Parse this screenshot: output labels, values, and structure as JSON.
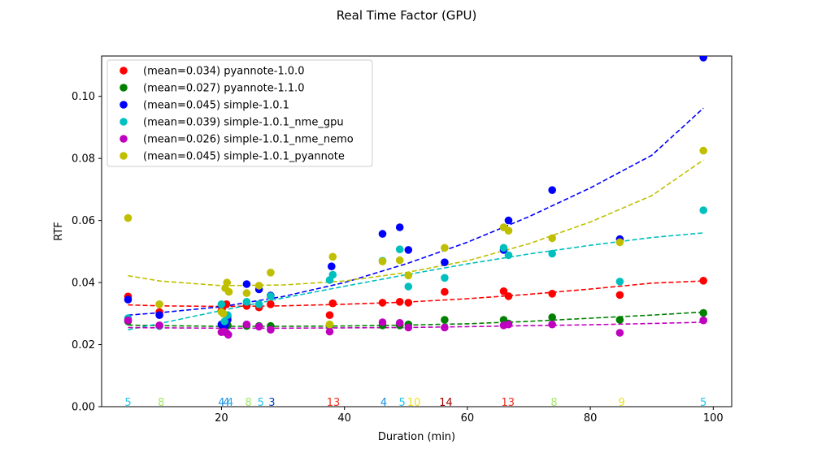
{
  "chart_data": {
    "type": "scatter",
    "title": "Real Time Factor (GPU)",
    "xlabel": "Duration (min)",
    "ylabel": "RTF",
    "xlim": [
      0.5,
      103.0
    ],
    "ylim": [
      0.0,
      0.113
    ],
    "xticks": [
      20,
      40,
      60,
      80,
      100
    ],
    "yticks": [
      0.0,
      0.02,
      0.04,
      0.06,
      0.08,
      0.1
    ],
    "legend_position": "upper-left",
    "series": [
      {
        "name": "(mean=0.034) pyannote-1.0.0",
        "color": "#ff0000",
        "points": [
          [
            4.8,
            0.0355
          ],
          [
            9.9,
            0.0305
          ],
          [
            20.0,
            0.031
          ],
          [
            20.3,
            0.0325
          ],
          [
            20.8,
            0.033
          ],
          [
            21.0,
            0.029
          ],
          [
            24.1,
            0.0325
          ],
          [
            26.1,
            0.032
          ],
          [
            28.0,
            0.033
          ],
          [
            37.6,
            0.0295
          ],
          [
            38.1,
            0.0333
          ],
          [
            46.2,
            0.0335
          ],
          [
            49.0,
            0.0338
          ],
          [
            50.4,
            0.0335
          ],
          [
            56.3,
            0.037
          ],
          [
            65.9,
            0.0372
          ],
          [
            66.7,
            0.0356
          ],
          [
            73.8,
            0.0364
          ],
          [
            84.8,
            0.036
          ],
          [
            98.4,
            0.0406
          ]
        ],
        "trend": [
          [
            4.8,
            0.0328
          ],
          [
            10.0,
            0.0325
          ],
          [
            20.0,
            0.0323
          ],
          [
            30.0,
            0.0325
          ],
          [
            40.0,
            0.033
          ],
          [
            50.0,
            0.0337
          ],
          [
            60.0,
            0.0348
          ],
          [
            70.0,
            0.0362
          ],
          [
            80.0,
            0.0379
          ],
          [
            90.0,
            0.0398
          ],
          [
            98.4,
            0.0405
          ]
        ]
      },
      {
        "name": "(mean=0.027) pyannote-1.1.0",
        "color": "#008000",
        "points": [
          [
            4.8,
            0.0275
          ],
          [
            9.9,
            0.026
          ],
          [
            20.2,
            0.026
          ],
          [
            21.0,
            0.0262
          ],
          [
            24.1,
            0.026
          ],
          [
            26.1,
            0.026
          ],
          [
            28.0,
            0.026
          ],
          [
            37.6,
            0.0262
          ],
          [
            46.2,
            0.0262
          ],
          [
            49.0,
            0.0262
          ],
          [
            50.4,
            0.0265
          ],
          [
            56.3,
            0.028
          ],
          [
            65.9,
            0.028
          ],
          [
            66.7,
            0.0268
          ],
          [
            73.8,
            0.0288
          ],
          [
            84.8,
            0.028
          ],
          [
            98.4,
            0.0302
          ]
        ],
        "trend": [
          [
            4.8,
            0.0263
          ],
          [
            10.0,
            0.0261
          ],
          [
            20.0,
            0.0259
          ],
          [
            30.0,
            0.0259
          ],
          [
            40.0,
            0.026
          ],
          [
            50.0,
            0.0263
          ],
          [
            60.0,
            0.0267
          ],
          [
            70.0,
            0.0275
          ],
          [
            80.0,
            0.0285
          ],
          [
            90.0,
            0.0295
          ],
          [
            98.4,
            0.0305
          ]
        ]
      },
      {
        "name": "(mean=0.045) simple-1.0.1",
        "color": "#0000ff",
        "points": [
          [
            4.8,
            0.0345
          ],
          [
            9.9,
            0.0295
          ],
          [
            20.0,
            0.0265
          ],
          [
            20.6,
            0.0262
          ],
          [
            21.0,
            0.028
          ],
          [
            24.1,
            0.0395
          ],
          [
            26.1,
            0.0378
          ],
          [
            28.0,
            0.0358
          ],
          [
            37.9,
            0.0452
          ],
          [
            46.2,
            0.0557
          ],
          [
            49.0,
            0.0578
          ],
          [
            50.4,
            0.0505
          ],
          [
            56.3,
            0.0465
          ],
          [
            65.9,
            0.0505
          ],
          [
            66.7,
            0.06
          ],
          [
            73.8,
            0.0698
          ],
          [
            84.8,
            0.054
          ],
          [
            98.4,
            0.1125
          ]
        ],
        "trend": [
          [
            4.8,
            0.0295
          ],
          [
            10.0,
            0.0303
          ],
          [
            20.0,
            0.0322
          ],
          [
            30.0,
            0.0355
          ],
          [
            40.0,
            0.04
          ],
          [
            50.0,
            0.046
          ],
          [
            60.0,
            0.053
          ],
          [
            70.0,
            0.0612
          ],
          [
            80.0,
            0.0705
          ],
          [
            90.0,
            0.081
          ],
          [
            98.4,
            0.0962
          ]
        ]
      },
      {
        "name": "(mean=0.039) simple-1.0.1_nme_gpu",
        "color": "#00bfbf",
        "points": [
          [
            4.8,
            0.0285
          ],
          [
            9.9,
            0.026
          ],
          [
            20.0,
            0.033
          ],
          [
            20.5,
            0.0275
          ],
          [
            21.0,
            0.0295
          ],
          [
            24.1,
            0.0338
          ],
          [
            26.1,
            0.033
          ],
          [
            28.0,
            0.0356
          ],
          [
            37.6,
            0.0408
          ],
          [
            38.1,
            0.0425
          ],
          [
            46.2,
            0.047
          ],
          [
            49.0,
            0.0507
          ],
          [
            50.4,
            0.0387
          ],
          [
            56.3,
            0.0415
          ],
          [
            65.9,
            0.0512
          ],
          [
            66.7,
            0.0488
          ],
          [
            73.8,
            0.0493
          ],
          [
            84.8,
            0.0403
          ],
          [
            98.4,
            0.0633
          ]
        ],
        "trend": [
          [
            4.8,
            0.0248
          ],
          [
            10.0,
            0.0268
          ],
          [
            20.0,
            0.031
          ],
          [
            30.0,
            0.035
          ],
          [
            40.0,
            0.0388
          ],
          [
            50.0,
            0.0425
          ],
          [
            60.0,
            0.046
          ],
          [
            70.0,
            0.0492
          ],
          [
            80.0,
            0.052
          ],
          [
            90.0,
            0.0545
          ],
          [
            98.4,
            0.056
          ]
        ]
      },
      {
        "name": "(mean=0.026) simple-1.0.1_nme_nemo",
        "color": "#bf00bf",
        "points": [
          [
            4.8,
            0.0278
          ],
          [
            9.9,
            0.0262
          ],
          [
            20.0,
            0.024
          ],
          [
            20.4,
            0.0242
          ],
          [
            20.8,
            0.0238
          ],
          [
            21.1,
            0.0232
          ],
          [
            24.1,
            0.0265
          ],
          [
            26.1,
            0.0258
          ],
          [
            28.0,
            0.0248
          ],
          [
            37.6,
            0.0242
          ],
          [
            46.2,
            0.0272
          ],
          [
            49.0,
            0.027
          ],
          [
            50.4,
            0.0255
          ],
          [
            56.3,
            0.0255
          ],
          [
            65.9,
            0.0262
          ],
          [
            66.7,
            0.0265
          ],
          [
            73.8,
            0.0265
          ],
          [
            84.8,
            0.0238
          ],
          [
            98.4,
            0.0278
          ]
        ],
        "trend": [
          [
            4.8,
            0.0255
          ],
          [
            10.0,
            0.0254
          ],
          [
            20.0,
            0.0253
          ],
          [
            30.0,
            0.0253
          ],
          [
            40.0,
            0.0254
          ],
          [
            50.0,
            0.0255
          ],
          [
            60.0,
            0.0258
          ],
          [
            70.0,
            0.0261
          ],
          [
            80.0,
            0.0264
          ],
          [
            90.0,
            0.0268
          ],
          [
            98.4,
            0.0272
          ]
        ]
      },
      {
        "name": "(mean=0.045) simple-1.0.1_pyannote",
        "color": "#bfbf00",
        "points": [
          [
            4.8,
            0.0608
          ],
          [
            9.9,
            0.033
          ],
          [
            20.0,
            0.0305
          ],
          [
            20.3,
            0.03
          ],
          [
            20.6,
            0.0382
          ],
          [
            20.9,
            0.04
          ],
          [
            21.2,
            0.037
          ],
          [
            24.1,
            0.0366
          ],
          [
            26.1,
            0.039
          ],
          [
            28.0,
            0.0432
          ],
          [
            37.6,
            0.0265
          ],
          [
            38.1,
            0.0483
          ],
          [
            46.2,
            0.0468
          ],
          [
            49.0,
            0.0472
          ],
          [
            50.4,
            0.0423
          ],
          [
            56.3,
            0.0512
          ],
          [
            65.9,
            0.0578
          ],
          [
            66.7,
            0.0567
          ],
          [
            73.8,
            0.0543
          ],
          [
            84.8,
            0.053
          ],
          [
            98.4,
            0.0825
          ]
        ],
        "trend": [
          [
            4.8,
            0.0422
          ],
          [
            10.0,
            0.0405
          ],
          [
            20.0,
            0.039
          ],
          [
            30.0,
            0.0392
          ],
          [
            40.0,
            0.0405
          ],
          [
            50.0,
            0.0432
          ],
          [
            60.0,
            0.047
          ],
          [
            70.0,
            0.0525
          ],
          [
            80.0,
            0.0595
          ],
          [
            90.0,
            0.068
          ],
          [
            98.4,
            0.0795
          ]
        ]
      }
    ],
    "annotations": [
      {
        "text": "5",
        "x": 4.8,
        "color": "#22c6e8"
      },
      {
        "text": "8",
        "x": 10.2,
        "color": "#a3e86a"
      },
      {
        "text": "4",
        "x": 20.0,
        "color": "#1a8fe0"
      },
      {
        "text": "4",
        "x": 20.8,
        "color": "#1a8fe0"
      },
      {
        "text": "4",
        "x": 21.4,
        "color": "#2aa8ee"
      },
      {
        "text": "8",
        "x": 24.4,
        "color": "#a3e86a"
      },
      {
        "text": "5",
        "x": 26.4,
        "color": "#22c6e8"
      },
      {
        "text": "3",
        "x": 28.2,
        "color": "#0044cc"
      },
      {
        "text": "13",
        "x": 38.2,
        "color": "#ee3322"
      },
      {
        "text": "4",
        "x": 46.4,
        "color": "#1a8fe0"
      },
      {
        "text": "5",
        "x": 49.4,
        "color": "#22c6e8"
      },
      {
        "text": "10",
        "x": 51.3,
        "color": "#e8e020"
      },
      {
        "text": "14",
        "x": 56.5,
        "color": "#a00000"
      },
      {
        "text": "13",
        "x": 66.6,
        "color": "#ee3322"
      },
      {
        "text": "8",
        "x": 74.1,
        "color": "#a3e86a"
      },
      {
        "text": "9",
        "x": 85.1,
        "color": "#e8e020"
      },
      {
        "text": "5",
        "x": 98.4,
        "color": "#22c6e8"
      }
    ]
  }
}
